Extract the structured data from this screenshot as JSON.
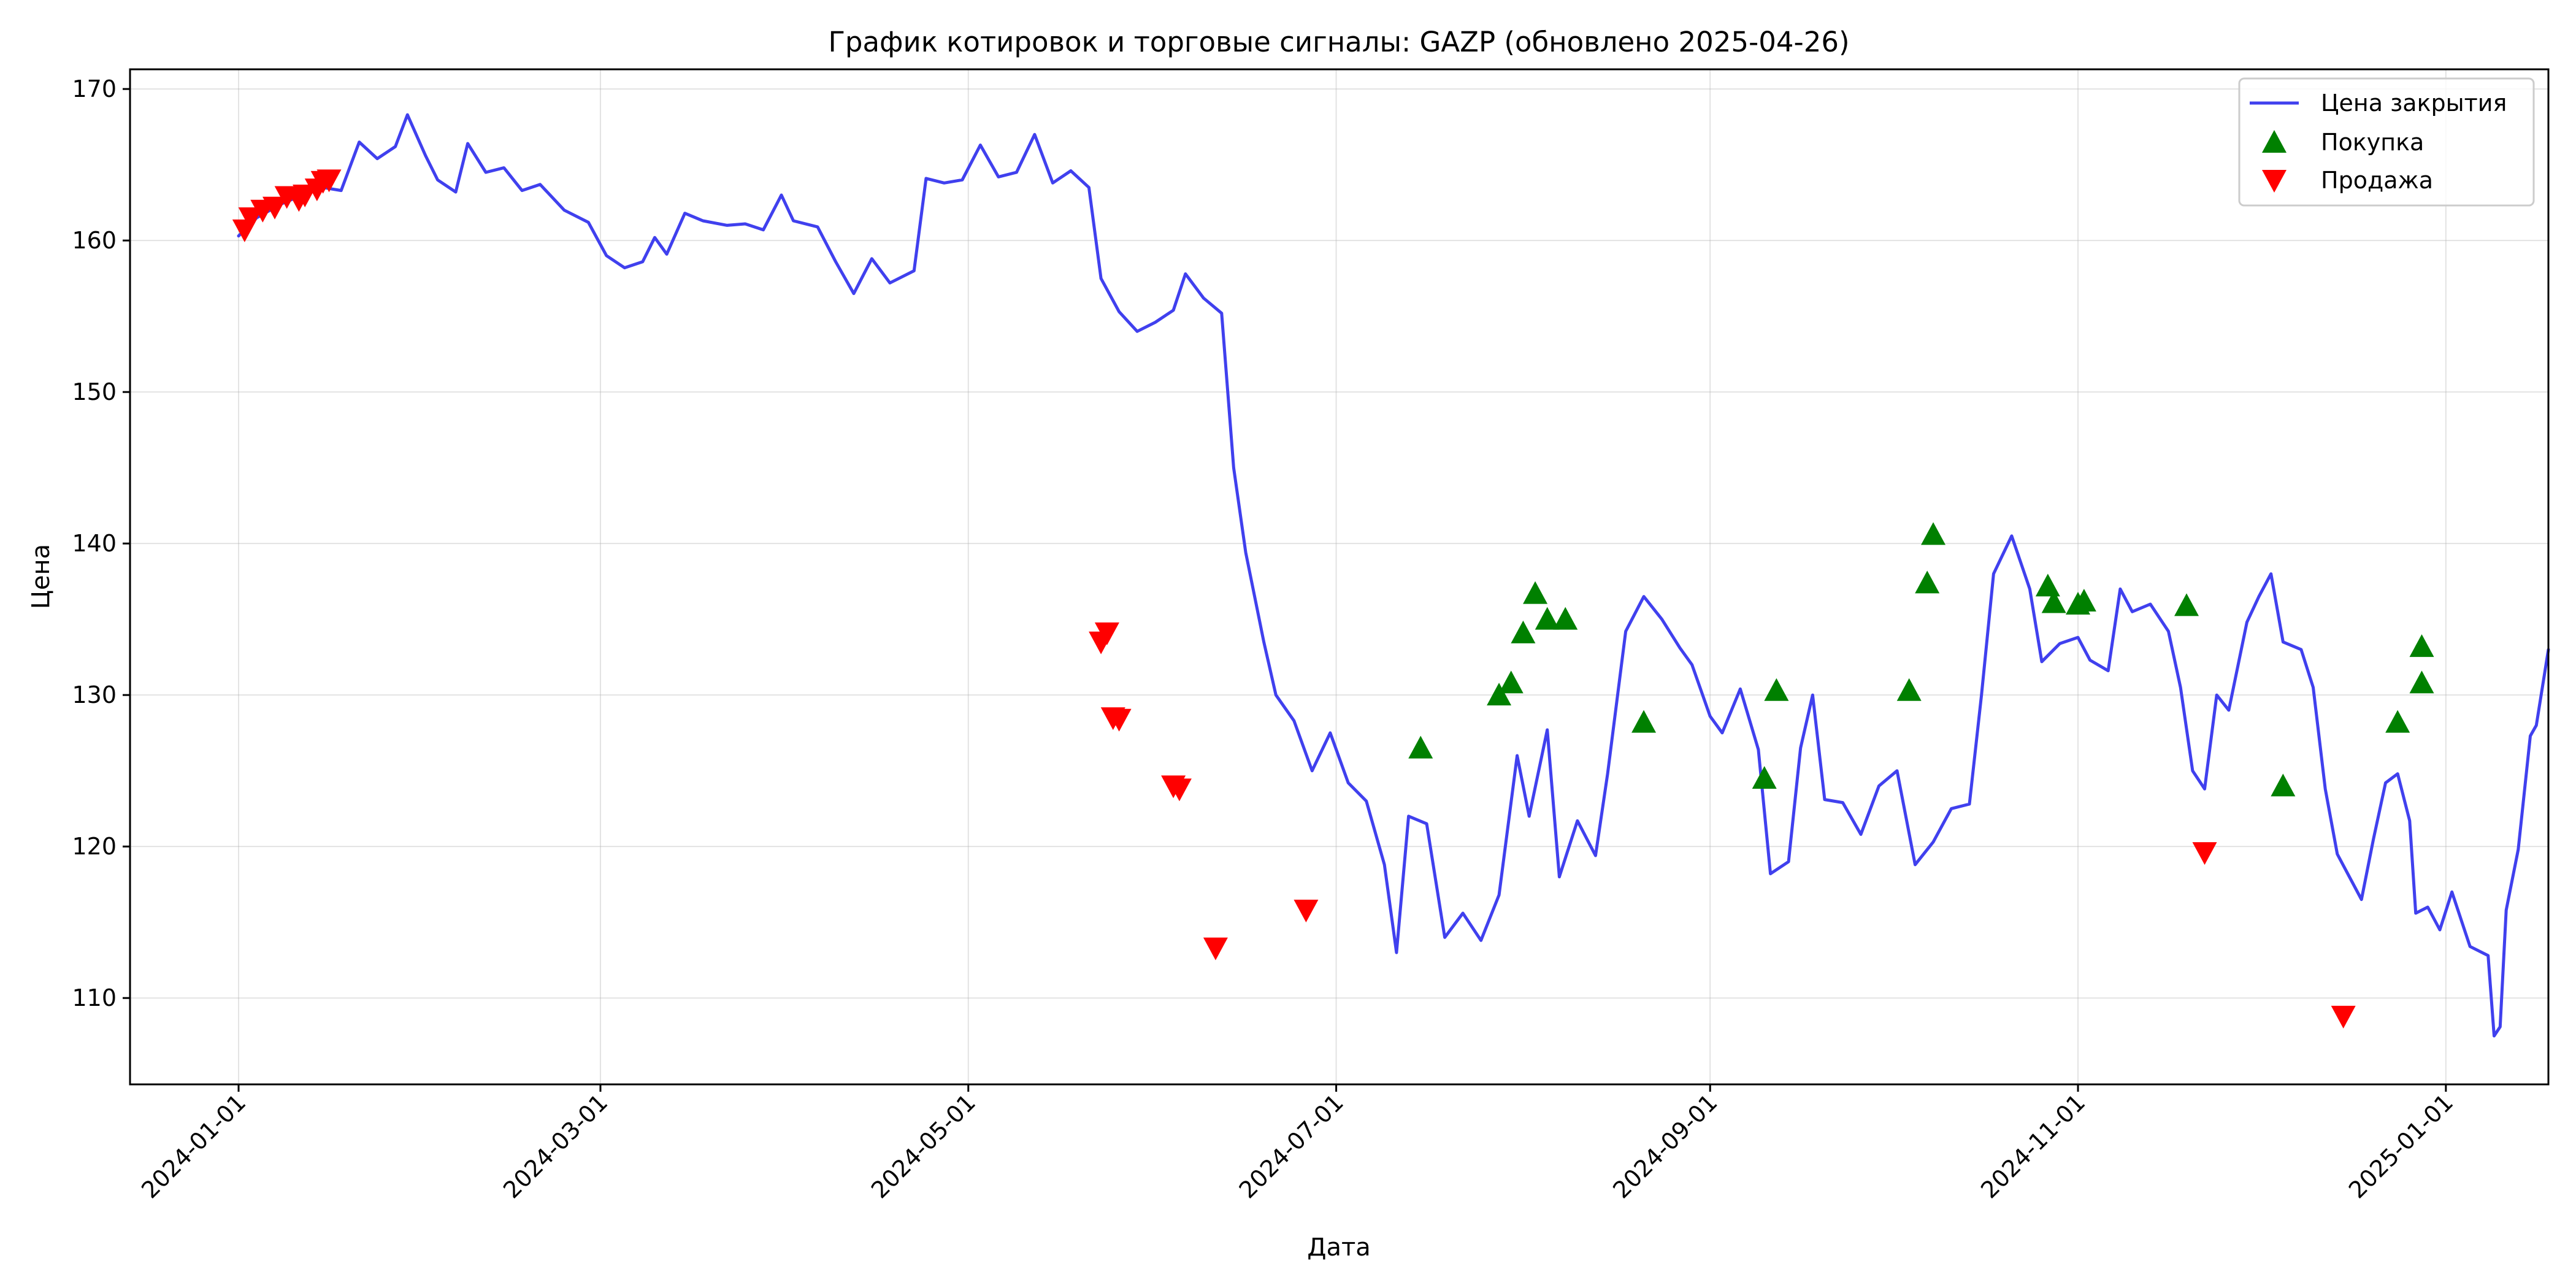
{
  "chart_data": {
    "type": "line",
    "title": "График котировок и торговые сигналы: GAZP (обновлено 2025-04-26)",
    "xlabel": "Дата",
    "ylabel": "Цена",
    "xlim": [
      "2023-12-14",
      "2025-01-18"
    ],
    "ylim": [
      104.3,
      171.3
    ],
    "x_ticks": [
      "2024-01-01",
      "2024-03-01",
      "2024-05-01",
      "2024-07-01",
      "2024-09-01",
      "2024-11-01",
      "2025-01-01"
    ],
    "y_ticks": [
      110,
      120,
      130,
      140,
      150,
      160,
      170
    ],
    "grid": true,
    "legend_position": "top-right",
    "colors": {
      "price": "#4040ee",
      "buy": "#008000",
      "sell": "#ff0000"
    },
    "legend": [
      {
        "label": "Цена закрытия",
        "kind": "line",
        "color": "#4040ee"
      },
      {
        "label": "Покупка",
        "kind": "triangle-up",
        "color": "#008000"
      },
      {
        "label": "Продажа",
        "kind": "triangle-down",
        "color": "#ff0000"
      }
    ],
    "series": [
      {
        "name": "Цена закрытия",
        "points": [
          [
            "2024-01-01",
            160.3
          ],
          [
            "2024-01-04",
            161.5
          ],
          [
            "2024-01-08",
            162.4
          ],
          [
            "2024-01-11",
            162.9
          ],
          [
            "2024-01-15",
            163.5
          ],
          [
            "2024-01-18",
            163.3
          ],
          [
            "2024-01-21",
            166.5
          ],
          [
            "2024-01-24",
            165.4
          ],
          [
            "2024-01-27",
            166.2
          ],
          [
            "2024-01-29",
            168.3
          ],
          [
            "2024-02-01",
            165.6
          ],
          [
            "2024-02-03",
            164.0
          ],
          [
            "2024-02-06",
            163.2
          ],
          [
            "2024-02-08",
            166.4
          ],
          [
            "2024-02-11",
            164.5
          ],
          [
            "2024-02-14",
            164.8
          ],
          [
            "2024-02-17",
            163.3
          ],
          [
            "2024-02-20",
            163.7
          ],
          [
            "2024-02-24",
            162.0
          ],
          [
            "2024-02-28",
            161.2
          ],
          [
            "2024-03-02",
            159.0
          ],
          [
            "2024-03-05",
            158.2
          ],
          [
            "2024-03-08",
            158.6
          ],
          [
            "2024-03-10",
            160.2
          ],
          [
            "2024-03-12",
            159.1
          ],
          [
            "2024-03-15",
            161.8
          ],
          [
            "2024-03-18",
            161.3
          ],
          [
            "2024-03-22",
            161.0
          ],
          [
            "2024-03-25",
            161.1
          ],
          [
            "2024-03-28",
            160.7
          ],
          [
            "2024-03-31",
            163.0
          ],
          [
            "2024-04-02",
            161.3
          ],
          [
            "2024-04-06",
            160.9
          ],
          [
            "2024-04-09",
            158.6
          ],
          [
            "2024-04-12",
            156.5
          ],
          [
            "2024-04-15",
            158.8
          ],
          [
            "2024-04-18",
            157.2
          ],
          [
            "2024-04-22",
            158.0
          ],
          [
            "2024-04-24",
            164.1
          ],
          [
            "2024-04-27",
            163.8
          ],
          [
            "2024-04-30",
            164.0
          ],
          [
            "2024-05-03",
            166.3
          ],
          [
            "2024-05-06",
            164.2
          ],
          [
            "2024-05-09",
            164.5
          ],
          [
            "2024-05-12",
            167.0
          ],
          [
            "2024-05-15",
            163.8
          ],
          [
            "2024-05-18",
            164.6
          ],
          [
            "2024-05-21",
            163.5
          ],
          [
            "2024-05-23",
            157.5
          ],
          [
            "2024-05-26",
            155.3
          ],
          [
            "2024-05-29",
            154.0
          ],
          [
            "2024-06-01",
            154.6
          ],
          [
            "2024-06-04",
            155.4
          ],
          [
            "2024-06-06",
            157.8
          ],
          [
            "2024-06-09",
            156.2
          ],
          [
            "2024-06-12",
            155.2
          ],
          [
            "2024-06-14",
            145.0
          ],
          [
            "2024-06-16",
            139.4
          ],
          [
            "2024-06-19",
            133.5
          ],
          [
            "2024-06-21",
            130.0
          ],
          [
            "2024-06-24",
            128.3
          ],
          [
            "2024-06-27",
            125.0
          ],
          [
            "2024-06-30",
            127.5
          ],
          [
            "2024-07-03",
            124.2
          ],
          [
            "2024-07-06",
            123.0
          ],
          [
            "2024-07-09",
            118.8
          ],
          [
            "2024-07-11",
            113.0
          ],
          [
            "2024-07-13",
            122.0
          ],
          [
            "2024-07-16",
            121.5
          ],
          [
            "2024-07-19",
            114.0
          ],
          [
            "2024-07-22",
            115.6
          ],
          [
            "2024-07-25",
            113.8
          ],
          [
            "2024-07-28",
            116.8
          ],
          [
            "2024-07-31",
            126.0
          ],
          [
            "2024-08-02",
            122.0
          ],
          [
            "2024-08-05",
            127.7
          ],
          [
            "2024-08-07",
            118.0
          ],
          [
            "2024-08-10",
            121.7
          ],
          [
            "2024-08-13",
            119.4
          ],
          [
            "2024-08-15",
            124.8
          ],
          [
            "2024-08-18",
            134.2
          ],
          [
            "2024-08-21",
            136.5
          ],
          [
            "2024-08-24",
            135.0
          ],
          [
            "2024-08-27",
            133.1
          ],
          [
            "2024-08-29",
            132.0
          ],
          [
            "2024-09-01",
            128.6
          ],
          [
            "2024-09-03",
            127.5
          ],
          [
            "2024-09-06",
            130.4
          ],
          [
            "2024-09-09",
            126.4
          ],
          [
            "2024-09-11",
            118.2
          ],
          [
            "2024-09-14",
            119.0
          ],
          [
            "2024-09-16",
            126.5
          ],
          [
            "2024-09-18",
            130.0
          ],
          [
            "2024-09-20",
            123.1
          ],
          [
            "2024-09-23",
            122.9
          ],
          [
            "2024-09-26",
            120.8
          ],
          [
            "2024-09-29",
            124.0
          ],
          [
            "2024-10-02",
            125.0
          ],
          [
            "2024-10-05",
            118.8
          ],
          [
            "2024-10-08",
            120.3
          ],
          [
            "2024-10-11",
            122.5
          ],
          [
            "2024-10-14",
            122.8
          ],
          [
            "2024-10-16",
            130.0
          ],
          [
            "2024-10-18",
            138.0
          ],
          [
            "2024-10-21",
            140.5
          ],
          [
            "2024-10-24",
            137.0
          ],
          [
            "2024-10-26",
            132.2
          ],
          [
            "2024-10-29",
            133.4
          ],
          [
            "2024-11-01",
            133.8
          ],
          [
            "2024-11-03",
            132.3
          ],
          [
            "2024-11-06",
            131.6
          ],
          [
            "2024-11-08",
            137.0
          ],
          [
            "2024-11-10",
            135.5
          ],
          [
            "2024-11-13",
            136.0
          ],
          [
            "2024-11-16",
            134.2
          ],
          [
            "2024-11-18",
            130.5
          ],
          [
            "2024-11-20",
            125.0
          ],
          [
            "2024-11-22",
            123.8
          ],
          [
            "2024-11-24",
            130.0
          ],
          [
            "2024-11-26",
            129.0
          ],
          [
            "2024-11-29",
            134.8
          ],
          [
            "2024-12-01",
            136.5
          ],
          [
            "2024-12-03",
            138.0
          ],
          [
            "2024-12-05",
            133.5
          ],
          [
            "2024-12-08",
            133.0
          ],
          [
            "2024-12-10",
            130.5
          ],
          [
            "2024-12-12",
            123.8
          ],
          [
            "2024-12-14",
            119.5
          ],
          [
            "2024-12-16",
            118.0
          ],
          [
            "2024-12-18",
            116.5
          ],
          [
            "2024-12-20",
            120.5
          ],
          [
            "2024-12-22",
            124.2
          ],
          [
            "2024-12-24",
            124.8
          ],
          [
            "2024-12-26",
            121.7
          ],
          [
            "2024-12-27",
            115.6
          ],
          [
            "2024-12-29",
            116.0
          ],
          [
            "2024-12-31",
            114.5
          ],
          [
            "2025-01-02",
            117.0
          ],
          [
            "2025-01-05",
            113.4
          ],
          [
            "2025-01-08",
            112.8
          ],
          [
            "2025-01-09",
            107.5
          ],
          [
            "2025-01-10",
            108.1
          ],
          [
            "2025-01-11",
            115.8
          ],
          [
            "2025-01-13",
            119.8
          ],
          [
            "2025-01-15",
            127.3
          ],
          [
            "2025-01-16",
            128.0
          ],
          [
            "2025-01-18",
            133.0
          ]
        ]
      },
      {
        "name": "Покупка",
        "points": [
          [
            "2024-07-15",
            126.5
          ],
          [
            "2024-07-28",
            130.0
          ],
          [
            "2024-07-30",
            130.8
          ],
          [
            "2024-08-01",
            134.1
          ],
          [
            "2024-08-03",
            136.7
          ],
          [
            "2024-08-05",
            135.0
          ],
          [
            "2024-08-08",
            135.0
          ],
          [
            "2024-08-21",
            128.2
          ],
          [
            "2024-09-10",
            124.5
          ],
          [
            "2024-09-12",
            130.3
          ],
          [
            "2024-10-04",
            130.3
          ],
          [
            "2024-10-07",
            137.4
          ],
          [
            "2024-10-08",
            140.6
          ],
          [
            "2024-10-27",
            137.2
          ],
          [
            "2024-10-28",
            136.1
          ],
          [
            "2024-11-01",
            136.0
          ],
          [
            "2024-11-02",
            136.2
          ],
          [
            "2024-11-19",
            135.9
          ],
          [
            "2024-12-05",
            124.0
          ],
          [
            "2024-12-24",
            128.2
          ],
          [
            "2024-12-28",
            130.8
          ],
          [
            "2024-12-28",
            133.2
          ]
        ]
      },
      {
        "name": "Продажа",
        "points": [
          [
            "2024-01-02",
            160.7
          ],
          [
            "2024-01-03",
            161.5
          ],
          [
            "2024-01-05",
            162.0
          ],
          [
            "2024-01-07",
            162.2
          ],
          [
            "2024-01-09",
            162.9
          ],
          [
            "2024-01-11",
            162.7
          ],
          [
            "2024-01-12",
            163.0
          ],
          [
            "2024-01-14",
            163.4
          ],
          [
            "2024-01-15",
            163.9
          ],
          [
            "2024-01-16",
            164.0
          ],
          [
            "2024-05-23",
            133.5
          ],
          [
            "2024-05-24",
            134.1
          ],
          [
            "2024-05-25",
            128.5
          ],
          [
            "2024-05-26",
            128.4
          ],
          [
            "2024-06-04",
            124.0
          ],
          [
            "2024-06-05",
            123.8
          ],
          [
            "2024-06-11",
            113.3
          ],
          [
            "2024-06-26",
            115.8
          ],
          [
            "2024-11-22",
            119.6
          ],
          [
            "2024-12-15",
            108.8
          ]
        ]
      }
    ]
  }
}
